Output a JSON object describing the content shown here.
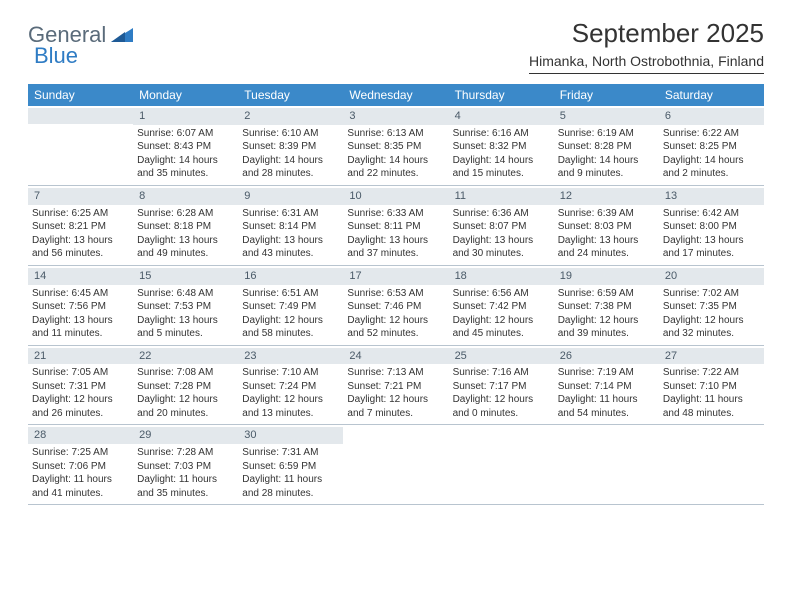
{
  "logo": {
    "word1": "General",
    "word2": "Blue"
  },
  "title": "September 2025",
  "location": "Himanka, North Ostrobothnia, Finland",
  "dayNames": [
    "Sunday",
    "Monday",
    "Tuesday",
    "Wednesday",
    "Thursday",
    "Friday",
    "Saturday"
  ],
  "colors": {
    "header_bg": "#3b89c9",
    "header_text": "#ffffff",
    "daynum_bg": "#e3e8ec",
    "text": "#333333",
    "rule": "#b8c4cf",
    "logo_gray": "#5a6b7a",
    "logo_blue": "#2f7cc4"
  },
  "weeks": [
    [
      {
        "n": "",
        "sr": "",
        "ss": "",
        "d1": "",
        "d2": "",
        "empty": true
      },
      {
        "n": "1",
        "sr": "Sunrise: 6:07 AM",
        "ss": "Sunset: 8:43 PM",
        "d1": "Daylight: 14 hours",
        "d2": "and 35 minutes."
      },
      {
        "n": "2",
        "sr": "Sunrise: 6:10 AM",
        "ss": "Sunset: 8:39 PM",
        "d1": "Daylight: 14 hours",
        "d2": "and 28 minutes."
      },
      {
        "n": "3",
        "sr": "Sunrise: 6:13 AM",
        "ss": "Sunset: 8:35 PM",
        "d1": "Daylight: 14 hours",
        "d2": "and 22 minutes."
      },
      {
        "n": "4",
        "sr": "Sunrise: 6:16 AM",
        "ss": "Sunset: 8:32 PM",
        "d1": "Daylight: 14 hours",
        "d2": "and 15 minutes."
      },
      {
        "n": "5",
        "sr": "Sunrise: 6:19 AM",
        "ss": "Sunset: 8:28 PM",
        "d1": "Daylight: 14 hours",
        "d2": "and 9 minutes."
      },
      {
        "n": "6",
        "sr": "Sunrise: 6:22 AM",
        "ss": "Sunset: 8:25 PM",
        "d1": "Daylight: 14 hours",
        "d2": "and 2 minutes."
      }
    ],
    [
      {
        "n": "7",
        "sr": "Sunrise: 6:25 AM",
        "ss": "Sunset: 8:21 PM",
        "d1": "Daylight: 13 hours",
        "d2": "and 56 minutes."
      },
      {
        "n": "8",
        "sr": "Sunrise: 6:28 AM",
        "ss": "Sunset: 8:18 PM",
        "d1": "Daylight: 13 hours",
        "d2": "and 49 minutes."
      },
      {
        "n": "9",
        "sr": "Sunrise: 6:31 AM",
        "ss": "Sunset: 8:14 PM",
        "d1": "Daylight: 13 hours",
        "d2": "and 43 minutes."
      },
      {
        "n": "10",
        "sr": "Sunrise: 6:33 AM",
        "ss": "Sunset: 8:11 PM",
        "d1": "Daylight: 13 hours",
        "d2": "and 37 minutes."
      },
      {
        "n": "11",
        "sr": "Sunrise: 6:36 AM",
        "ss": "Sunset: 8:07 PM",
        "d1": "Daylight: 13 hours",
        "d2": "and 30 minutes."
      },
      {
        "n": "12",
        "sr": "Sunrise: 6:39 AM",
        "ss": "Sunset: 8:03 PM",
        "d1": "Daylight: 13 hours",
        "d2": "and 24 minutes."
      },
      {
        "n": "13",
        "sr": "Sunrise: 6:42 AM",
        "ss": "Sunset: 8:00 PM",
        "d1": "Daylight: 13 hours",
        "d2": "and 17 minutes."
      }
    ],
    [
      {
        "n": "14",
        "sr": "Sunrise: 6:45 AM",
        "ss": "Sunset: 7:56 PM",
        "d1": "Daylight: 13 hours",
        "d2": "and 11 minutes."
      },
      {
        "n": "15",
        "sr": "Sunrise: 6:48 AM",
        "ss": "Sunset: 7:53 PM",
        "d1": "Daylight: 13 hours",
        "d2": "and 5 minutes."
      },
      {
        "n": "16",
        "sr": "Sunrise: 6:51 AM",
        "ss": "Sunset: 7:49 PM",
        "d1": "Daylight: 12 hours",
        "d2": "and 58 minutes."
      },
      {
        "n": "17",
        "sr": "Sunrise: 6:53 AM",
        "ss": "Sunset: 7:46 PM",
        "d1": "Daylight: 12 hours",
        "d2": "and 52 minutes."
      },
      {
        "n": "18",
        "sr": "Sunrise: 6:56 AM",
        "ss": "Sunset: 7:42 PM",
        "d1": "Daylight: 12 hours",
        "d2": "and 45 minutes."
      },
      {
        "n": "19",
        "sr": "Sunrise: 6:59 AM",
        "ss": "Sunset: 7:38 PM",
        "d1": "Daylight: 12 hours",
        "d2": "and 39 minutes."
      },
      {
        "n": "20",
        "sr": "Sunrise: 7:02 AM",
        "ss": "Sunset: 7:35 PM",
        "d1": "Daylight: 12 hours",
        "d2": "and 32 minutes."
      }
    ],
    [
      {
        "n": "21",
        "sr": "Sunrise: 7:05 AM",
        "ss": "Sunset: 7:31 PM",
        "d1": "Daylight: 12 hours",
        "d2": "and 26 minutes."
      },
      {
        "n": "22",
        "sr": "Sunrise: 7:08 AM",
        "ss": "Sunset: 7:28 PM",
        "d1": "Daylight: 12 hours",
        "d2": "and 20 minutes."
      },
      {
        "n": "23",
        "sr": "Sunrise: 7:10 AM",
        "ss": "Sunset: 7:24 PM",
        "d1": "Daylight: 12 hours",
        "d2": "and 13 minutes."
      },
      {
        "n": "24",
        "sr": "Sunrise: 7:13 AM",
        "ss": "Sunset: 7:21 PM",
        "d1": "Daylight: 12 hours",
        "d2": "and 7 minutes."
      },
      {
        "n": "25",
        "sr": "Sunrise: 7:16 AM",
        "ss": "Sunset: 7:17 PM",
        "d1": "Daylight: 12 hours",
        "d2": "and 0 minutes."
      },
      {
        "n": "26",
        "sr": "Sunrise: 7:19 AM",
        "ss": "Sunset: 7:14 PM",
        "d1": "Daylight: 11 hours",
        "d2": "and 54 minutes."
      },
      {
        "n": "27",
        "sr": "Sunrise: 7:22 AM",
        "ss": "Sunset: 7:10 PM",
        "d1": "Daylight: 11 hours",
        "d2": "and 48 minutes."
      }
    ],
    [
      {
        "n": "28",
        "sr": "Sunrise: 7:25 AM",
        "ss": "Sunset: 7:06 PM",
        "d1": "Daylight: 11 hours",
        "d2": "and 41 minutes."
      },
      {
        "n": "29",
        "sr": "Sunrise: 7:28 AM",
        "ss": "Sunset: 7:03 PM",
        "d1": "Daylight: 11 hours",
        "d2": "and 35 minutes."
      },
      {
        "n": "30",
        "sr": "Sunrise: 7:31 AM",
        "ss": "Sunset: 6:59 PM",
        "d1": "Daylight: 11 hours",
        "d2": "and 28 minutes."
      },
      {
        "n": "",
        "sr": "",
        "ss": "",
        "d1": "",
        "d2": "",
        "blank": true
      },
      {
        "n": "",
        "sr": "",
        "ss": "",
        "d1": "",
        "d2": "",
        "blank": true
      },
      {
        "n": "",
        "sr": "",
        "ss": "",
        "d1": "",
        "d2": "",
        "blank": true
      },
      {
        "n": "",
        "sr": "",
        "ss": "",
        "d1": "",
        "d2": "",
        "blank": true
      }
    ]
  ]
}
